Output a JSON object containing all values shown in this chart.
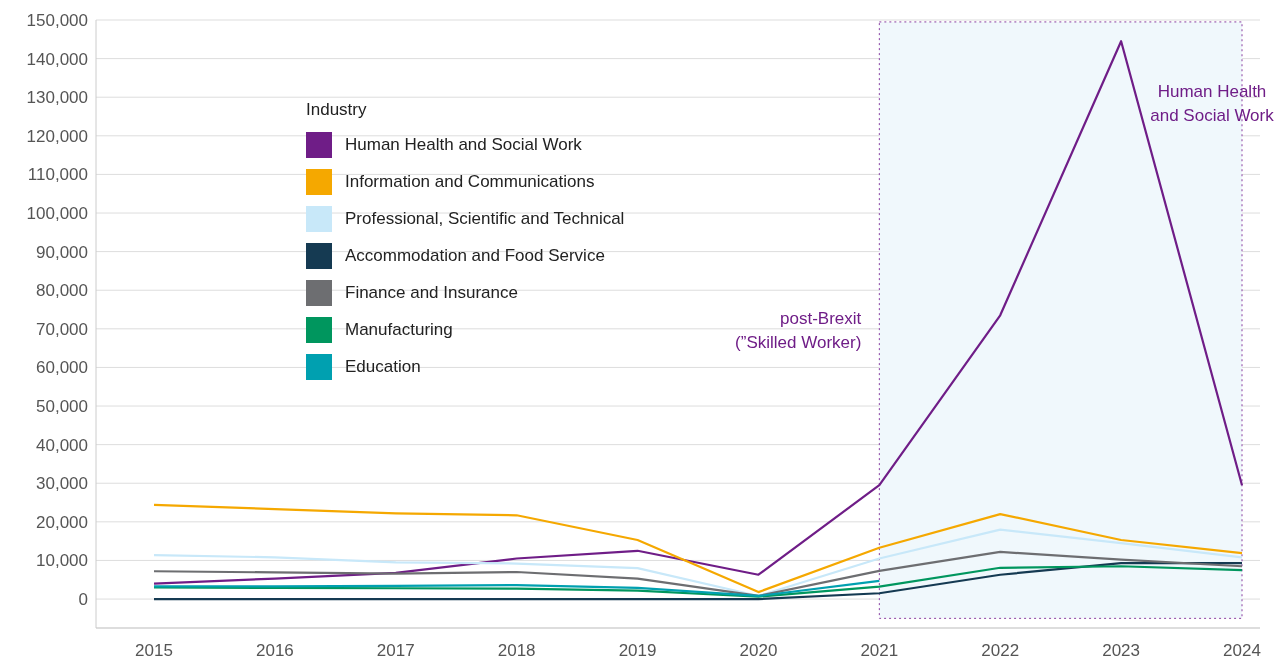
{
  "chart_data": {
    "type": "line",
    "legend_title": "Industry",
    "categories": [
      "2015",
      "2016",
      "2017",
      "2018",
      "2019",
      "2020",
      "2021",
      "2022",
      "2023",
      "2024"
    ],
    "series": [
      {
        "name": "Human Health and Social Work",
        "color": "#6f1d87",
        "values": [
          4000,
          5300,
          6800,
          10500,
          12500,
          6300,
          29500,
          73500,
          144500,
          29500
        ]
      },
      {
        "name": "Information and Communications",
        "color": "#f5a800",
        "values": [
          24400,
          23300,
          22200,
          21700,
          15300,
          1800,
          13300,
          22000,
          15300,
          11900
        ]
      },
      {
        "name": "Professional, Scientific and Technical",
        "color": "#c8e8f9",
        "values": [
          11400,
          10800,
          9500,
          9200,
          8000,
          800,
          10500,
          18000,
          14500,
          10800
        ]
      },
      {
        "name": "Accommodation and Food Service",
        "color": "#153a52",
        "values": [
          0,
          0,
          0,
          0,
          0,
          0,
          1500,
          6300,
          9300,
          9300
        ]
      },
      {
        "name": "Finance and Insurance",
        "color": "#6d6e71",
        "values": [
          7200,
          6900,
          6600,
          7000,
          5300,
          800,
          7300,
          12200,
          10200,
          8500
        ]
      },
      {
        "name": "Manufacturing",
        "color": "#00965e",
        "values": [
          3000,
          2900,
          2800,
          2700,
          2200,
          600,
          3200,
          8100,
          8500,
          7500
        ]
      },
      {
        "name": "Education",
        "color": "#00a0b0",
        "values": [
          3300,
          3300,
          3400,
          3600,
          2900,
          800,
          4700,
          null,
          null,
          null
        ]
      }
    ],
    "ylim": [
      -7500,
      150000
    ],
    "yticks": [
      {
        "value": 0,
        "label": "0"
      },
      {
        "value": 10000,
        "label": "10,000"
      },
      {
        "value": 20000,
        "label": "20,000"
      },
      {
        "value": 30000,
        "label": "30,000"
      },
      {
        "value": 40000,
        "label": "40,000"
      },
      {
        "value": 50000,
        "label": "50,000"
      },
      {
        "value": 60000,
        "label": "60,000"
      },
      {
        "value": 70000,
        "label": "70,000"
      },
      {
        "value": 80000,
        "label": "80,000"
      },
      {
        "value": 90000,
        "label": "90,000"
      },
      {
        "value": 100000,
        "label": "100,000"
      },
      {
        "value": 110000,
        "label": "110,000"
      },
      {
        "value": 120000,
        "label": "120,000"
      },
      {
        "value": 130000,
        "label": "130,000"
      },
      {
        "value": 140000,
        "label": "140,000"
      },
      {
        "value": 150000,
        "label": "150,000"
      }
    ],
    "bands": [
      {
        "axis": "x",
        "from": "2021",
        "to": "2024",
        "label": "post-Brexit\n(”Skilled Worker)",
        "color": "#f0f8fc"
      }
    ],
    "annotations": [
      {
        "text": "Human Health\nand Social Work",
        "x": "2024",
        "y": 128000
      }
    ],
    "grid": "y",
    "legend": "top left",
    "marker": "none",
    "line_style": "solid"
  }
}
